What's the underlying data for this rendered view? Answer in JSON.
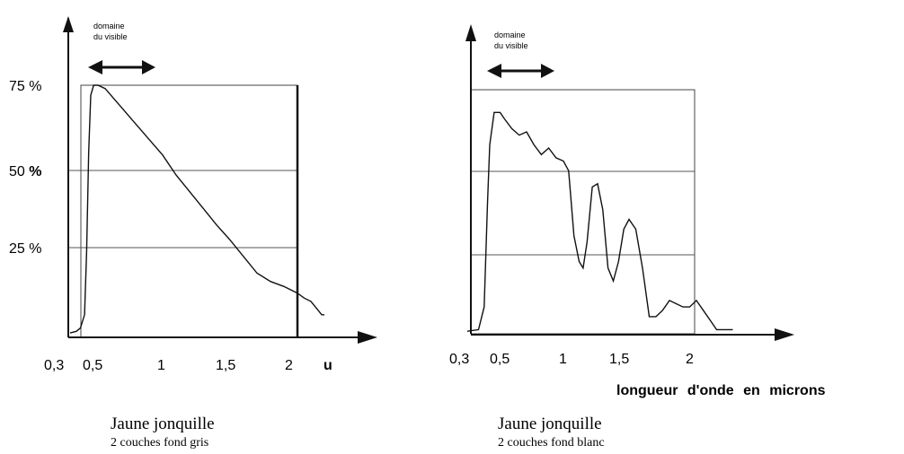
{
  "chart_data": [
    {
      "type": "line",
      "title": "Jaune jonquille",
      "subtitle": "2 couches fond gris",
      "annotation": "domaine\ndu visible",
      "x_tick_labels": [
        "0,3",
        "0,5",
        "1",
        "1,5",
        "2"
      ],
      "x_ticks": [
        0.3,
        0.5,
        1.0,
        1.5,
        2.0
      ],
      "x_unit": "u",
      "y_tick_labels": [
        "75 %",
        "50 %",
        "25 %"
      ],
      "y_ticks": [
        75,
        50,
        25
      ],
      "xlim": [
        0.3,
        2.2
      ],
      "ylim": [
        0,
        75
      ],
      "grid": true,
      "series": [
        {
          "x": [
            0.3,
            0.36,
            0.4,
            0.44,
            0.46,
            0.48,
            0.5,
            0.52,
            0.55,
            0.6,
            0.7,
            0.8,
            0.9,
            1.0,
            1.1,
            1.2,
            1.3,
            1.4,
            1.5,
            1.6,
            1.7,
            1.8,
            1.9,
            2.0,
            2.05,
            2.1,
            2.14,
            2.18,
            2.2
          ],
          "y": [
            0.5,
            1,
            2,
            6,
            25,
            55,
            72,
            75,
            75,
            74,
            69,
            64,
            59,
            54,
            48,
            43,
            38,
            33,
            28.5,
            23.5,
            18.5,
            16,
            14.5,
            12.5,
            11,
            10,
            8,
            6,
            6
          ]
        }
      ]
    },
    {
      "type": "line",
      "title": "Jaune jonquille",
      "subtitle": "2 couches fond blanc",
      "annotation": "domaine\ndu visible",
      "x_tick_labels": [
        "0,3",
        "0,5",
        "1",
        "1,5",
        "2"
      ],
      "x_ticks": [
        0.3,
        0.5,
        1.0,
        1.5,
        2.0
      ],
      "x_unit_label": "longueur d'onde en microns",
      "xlim": [
        0.3,
        2.2
      ],
      "ylim": [
        0,
        75
      ],
      "grid": true,
      "series": [
        {
          "x": [
            0.3,
            0.4,
            0.45,
            0.48,
            0.5,
            0.53,
            0.57,
            0.6,
            0.65,
            0.7,
            0.75,
            0.8,
            0.85,
            0.9,
            0.95,
            1.0,
            1.04,
            1.08,
            1.12,
            1.15,
            1.18,
            1.22,
            1.26,
            1.3,
            1.34,
            1.38,
            1.42,
            1.46,
            1.5,
            1.55,
            1.6,
            1.65,
            1.7,
            1.75,
            1.8,
            1.85,
            1.9,
            1.95,
            2.0,
            2.05,
            2.1,
            2.15,
            2.2,
            2.27
          ],
          "y": [
            0.5,
            1,
            8,
            40,
            58,
            68,
            68,
            66,
            63,
            61,
            62,
            58,
            55,
            57,
            54,
            53,
            50,
            30,
            22,
            20,
            28,
            45,
            46,
            38,
            20,
            16,
            22,
            32,
            35,
            32,
            20,
            5,
            5,
            7,
            10,
            9,
            8,
            8,
            10,
            7,
            4,
            1,
            1,
            1
          ]
        }
      ]
    }
  ]
}
